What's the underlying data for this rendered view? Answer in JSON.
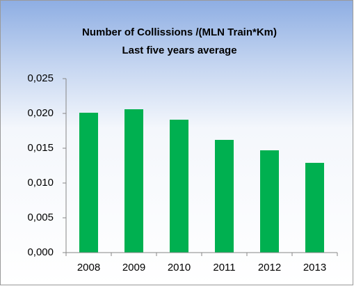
{
  "chart_data": {
    "type": "bar",
    "title": "Number of Collissions /(MLN Train*Km)",
    "subtitle": "Last five years average",
    "categories": [
      "2008",
      "2009",
      "2010",
      "2011",
      "2012",
      "2013"
    ],
    "values": [
      0.0201,
      0.0206,
      0.0191,
      0.0162,
      0.0147,
      0.0129
    ],
    "color": "#00b050",
    "ylim": [
      0,
      0.025
    ],
    "yticks": [
      {
        "value": 0,
        "label": "0,000"
      },
      {
        "value": 0.005,
        "label": "0,005"
      },
      {
        "value": 0.01,
        "label": "0,010"
      },
      {
        "value": 0.015,
        "label": "0,015"
      },
      {
        "value": 0.02,
        "label": "0,020"
      },
      {
        "value": 0.025,
        "label": "0,025"
      }
    ],
    "grid": false
  }
}
